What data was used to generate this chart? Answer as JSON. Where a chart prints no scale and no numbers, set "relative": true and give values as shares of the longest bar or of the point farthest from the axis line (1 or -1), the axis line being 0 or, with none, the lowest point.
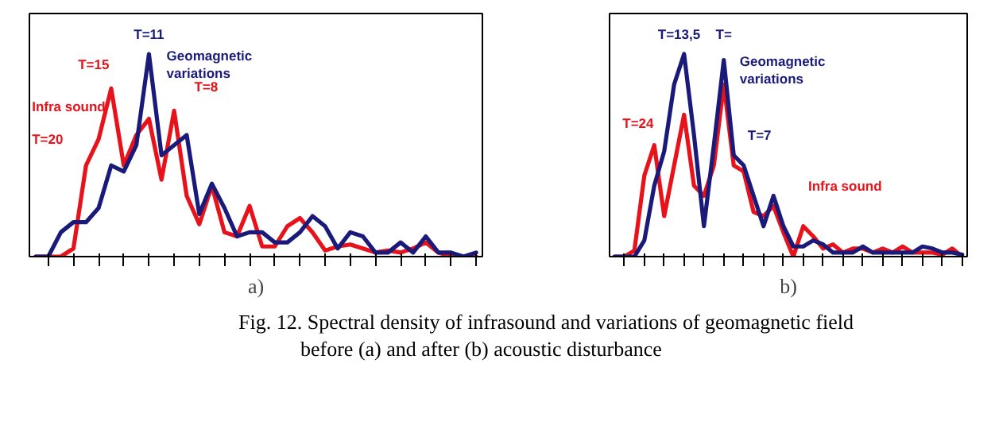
{
  "chart_data": [
    {
      "type": "line",
      "relative": true,
      "xlabel": "a)",
      "categories": [
        null,
        null,
        null,
        null,
        null,
        null,
        null,
        null,
        null,
        null,
        null,
        null,
        null,
        null,
        null,
        null,
        null,
        null,
        null,
        null,
        null,
        null,
        null,
        null,
        null,
        null,
        null,
        null,
        null,
        null,
        null,
        null,
        null,
        null,
        null,
        null
      ],
      "series": [
        {
          "color": "#e8121a",
          "values": [
            0,
            0,
            0,
            0.04,
            0.45,
            0.58,
            0.83,
            0.45,
            0.6,
            0.68,
            0.38,
            0.72,
            0.3,
            0.16,
            0.35,
            0.12,
            0.1,
            0.25,
            0.05,
            0.05,
            0.15,
            0.19,
            0.12,
            0.03,
            0.05,
            0.06,
            0.04,
            0.02,
            0.03,
            0.02,
            0.04,
            0.07,
            0.02,
            0,
            0,
            0
          ]
        },
        {
          "color": "#1a1a7a",
          "values": [
            0,
            0,
            0.12,
            0.17,
            0.17,
            0.24,
            0.45,
            0.42,
            0.55,
            1.0,
            0.5,
            0.55,
            0.6,
            0.21,
            0.36,
            0.24,
            0.1,
            0.12,
            0.12,
            0.07,
            0.07,
            0.12,
            0.2,
            0.15,
            0.04,
            0.12,
            0.1,
            0.02,
            0.02,
            0.07,
            0.02,
            0.1,
            0.02,
            0.02,
            0,
            0.02
          ]
        }
      ],
      "annotations": [
        "T=11",
        "T=15",
        "Infra sound",
        "T=20",
        "T=8",
        "Geomagnetic\nvariations"
      ]
    },
    {
      "type": "line",
      "relative": true,
      "xlabel": "b)",
      "categories": [
        null,
        null,
        null,
        null,
        null,
        null,
        null,
        null,
        null,
        null,
        null,
        null,
        null,
        null,
        null,
        null,
        null,
        null,
        null,
        null,
        null,
        null,
        null,
        null,
        null,
        null,
        null,
        null,
        null,
        null,
        null,
        null,
        null,
        null,
        null,
        null
      ],
      "series": [
        {
          "color": "#e8121a",
          "values": [
            0,
            0,
            0.03,
            0.4,
            0.55,
            0.2,
            0.45,
            0.7,
            0.35,
            0.3,
            0.45,
            0.85,
            0.45,
            0.42,
            0.22,
            0.2,
            0.25,
            0.12,
            0,
            0.15,
            0.1,
            0.04,
            0.06,
            0.02,
            0.04,
            0.04,
            0.02,
            0.04,
            0.02,
            0.05,
            0.02,
            0.02,
            0.02,
            0.01,
            0.04,
            0
          ]
        },
        {
          "color": "#1a1a7a",
          "values": [
            0,
            0,
            0,
            0.08,
            0.35,
            0.52,
            0.85,
            1.0,
            0.6,
            0.15,
            0.55,
            0.97,
            0.5,
            0.45,
            0.3,
            0.15,
            0.3,
            0.15,
            0.05,
            0.05,
            0.08,
            0.06,
            0.02,
            0.02,
            0.02,
            0.05,
            0.02,
            0.02,
            0.02,
            0.02,
            0.02,
            0.05,
            0.04,
            0.02,
            0.02,
            0.01
          ]
        }
      ],
      "annotations": [
        "T=13,5",
        "T=",
        "Geomagnetic\nvariations",
        "T=24",
        "T=7",
        "Infra sound",
        "Fig. 12. Spectral density of infrasound and variations of geomagnetic field\n            before (a) and after (b) acoustic disturbance"
      ]
    }
  ]
}
